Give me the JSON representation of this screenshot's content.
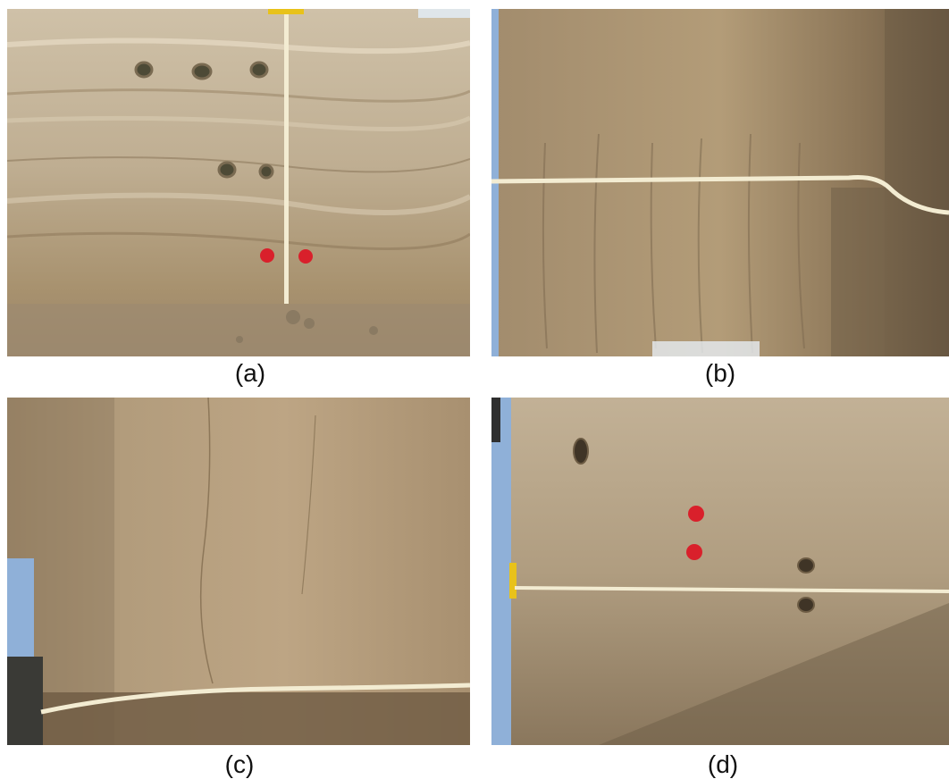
{
  "figure": {
    "panels": [
      {
        "id": "a",
        "caption": "(a)",
        "subject": "layered-soil-profile-with-vertical-tape-and-sample-holes"
      },
      {
        "id": "b",
        "caption": "(b)",
        "subject": "columnar-soil-face-with-horizontal-tape"
      },
      {
        "id": "c",
        "caption": "(c)",
        "subject": "smooth-soil-face-with-horizontal-tape"
      },
      {
        "id": "d",
        "caption": "(d)",
        "subject": "soil-face-with-red-markers-and-horizontal-tape"
      }
    ]
  },
  "colors": {
    "background": "#ffffff",
    "soil_light": "#c9b79c",
    "soil_mid": "#a9916f",
    "soil_dark": "#7c6547",
    "tape": "#f3ecd2",
    "marker_red": "#d9202b",
    "sky": "#8fb0d8"
  }
}
